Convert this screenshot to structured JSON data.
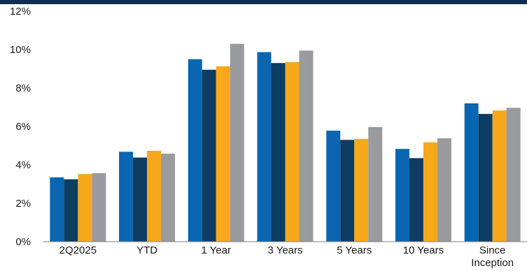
{
  "colors": {
    "top_band": "#0f2d52",
    "axis": "#7f7f7f",
    "series": [
      "#0a66b0",
      "#0e3d63",
      "#f7a81b",
      "#999b9e"
    ]
  },
  "chart_data": {
    "type": "bar",
    "title": "",
    "xlabel": "",
    "ylabel": "",
    "ylim": [
      0,
      12
    ],
    "yticks": [
      "0%",
      "2%",
      "4%",
      "6%",
      "8%",
      "10%",
      "12%"
    ],
    "grid": false,
    "legend": "none",
    "categories": [
      [
        "2Q2025"
      ],
      [
        "YTD"
      ],
      [
        "1 Year"
      ],
      [
        "3 Years"
      ],
      [
        "5 Years"
      ],
      [
        "10 Years"
      ],
      [
        "Since",
        "Inception"
      ]
    ],
    "series": [
      {
        "values": [
          3.35,
          4.68,
          9.5,
          9.87,
          5.78,
          4.83,
          7.2
        ]
      },
      {
        "values": [
          3.25,
          4.38,
          8.95,
          9.3,
          5.3,
          4.35,
          6.65
        ]
      },
      {
        "values": [
          3.52,
          4.73,
          9.13,
          9.35,
          5.35,
          5.17,
          6.83
        ]
      },
      {
        "values": [
          3.57,
          4.58,
          10.3,
          9.95,
          5.97,
          5.38,
          6.97
        ]
      }
    ]
  }
}
